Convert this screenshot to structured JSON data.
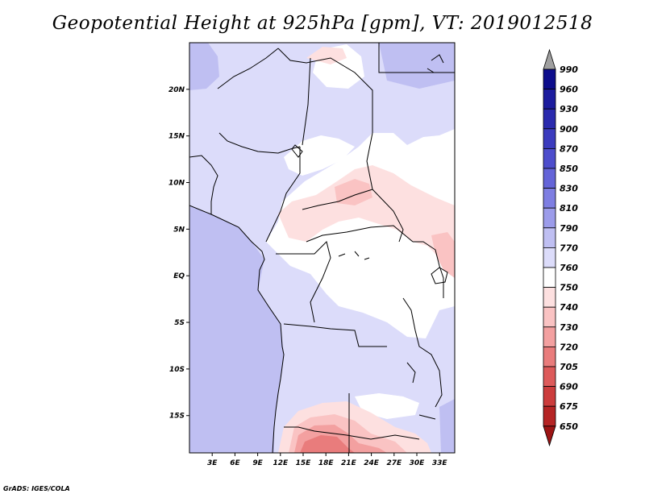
{
  "title": "Geopotential Height at 925hPa [gpm], VT: 2019012518",
  "credit": "GrADS: IGES/COLA",
  "map": {
    "lat_range": [
      -19,
      25
    ],
    "lon_range": [
      0,
      35
    ],
    "lat_ticks": [
      "20N",
      "15N",
      "10N",
      "5N",
      "EQ",
      "5S",
      "10S",
      "15S"
    ],
    "lat_tick_values": [
      20,
      15,
      10,
      5,
      0,
      -5,
      -10,
      -15
    ],
    "lon_ticks": [
      "3E",
      "6E",
      "9E",
      "12E",
      "15E",
      "18E",
      "21E",
      "24E",
      "27E",
      "30E",
      "33E"
    ],
    "lon_tick_values": [
      3,
      6,
      9,
      12,
      15,
      18,
      21,
      24,
      27,
      30,
      33
    ]
  },
  "colorbar": {
    "levels": [
      "990",
      "960",
      "930",
      "900",
      "870",
      "850",
      "830",
      "810",
      "790",
      "770",
      "760",
      "750",
      "740",
      "730",
      "720",
      "705",
      "690",
      "675",
      "650"
    ],
    "colors": [
      "#a0a0a0",
      "#0d0d8c",
      "#1c1c9e",
      "#2a2aae",
      "#3b3bbe",
      "#4d4dcc",
      "#6464d8",
      "#7e7ee2",
      "#9c9cea",
      "#bfbff2",
      "#dcdcfa",
      "#ffffff",
      "#fde0e0",
      "#fac3c3",
      "#f3a0a0",
      "#e97c7c",
      "#dd5a5a",
      "#cc3c3c",
      "#b52424",
      "#9c1414"
    ]
  }
}
